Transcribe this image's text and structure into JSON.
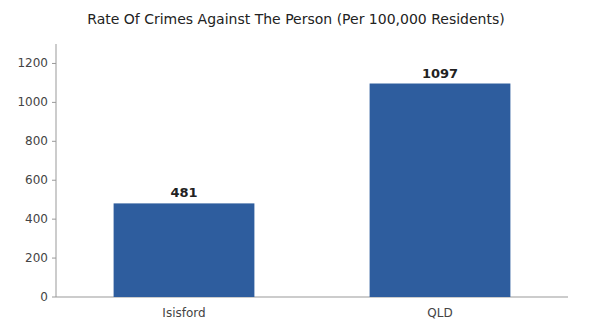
{
  "chart_data": {
    "type": "bar",
    "title": "Rate Of Crimes Against The Person (Per 100,000 Residents)",
    "categories": [
      "Isisford",
      "QLD"
    ],
    "values": [
      481,
      1097
    ],
    "color": "#2e5d9e",
    "ylim": [
      0,
      1300
    ],
    "yticks": [
      0,
      200,
      400,
      600,
      800,
      1000,
      1200
    ],
    "grid": false,
    "data_labels": true
  }
}
